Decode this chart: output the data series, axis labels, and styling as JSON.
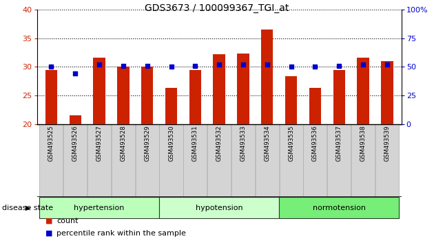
{
  "title": "GDS3673 / 100099367_TGI_at",
  "categories": [
    "GSM493525",
    "GSM493526",
    "GSM493527",
    "GSM493528",
    "GSM493529",
    "GSM493530",
    "GSM493531",
    "GSM493532",
    "GSM493533",
    "GSM493534",
    "GSM493535",
    "GSM493536",
    "GSM493537",
    "GSM493538",
    "GSM493539"
  ],
  "count_values": [
    29.4,
    21.5,
    31.6,
    30.0,
    30.0,
    26.3,
    29.4,
    32.2,
    32.3,
    36.5,
    28.3,
    26.3,
    29.5,
    31.6,
    31.0
  ],
  "percentile_values": [
    50,
    44,
    52,
    51,
    51,
    50,
    51,
    52,
    52,
    52,
    50,
    50,
    51,
    52,
    52
  ],
  "ylim_left": [
    20,
    40
  ],
  "ylim_right": [
    0,
    100
  ],
  "yticks_left": [
    20,
    25,
    30,
    35,
    40
  ],
  "yticks_right": [
    0,
    25,
    50,
    75,
    100
  ],
  "bar_color": "#cc2200",
  "dot_color": "#0000cc",
  "groups": [
    {
      "label": "hypertension",
      "start": 0,
      "end": 4,
      "color": "#bbffbb"
    },
    {
      "label": "hypotension",
      "start": 5,
      "end": 9,
      "color": "#ccffcc"
    },
    {
      "label": "normotension",
      "start": 10,
      "end": 14,
      "color": "#77ee77"
    }
  ],
  "disease_state_label": "disease state",
  "legend_count_label": "count",
  "legend_percentile_label": "percentile rank within the sample",
  "background_color": "#ffffff",
  "bar_width": 0.5,
  "label_box_color": "#d4d4d4",
  "label_box_edge_color": "#aaaaaa",
  "grid_color": "#000000",
  "bar_color_left_tick": "#cc2200",
  "dot_color_right_tick": "#0000cc"
}
